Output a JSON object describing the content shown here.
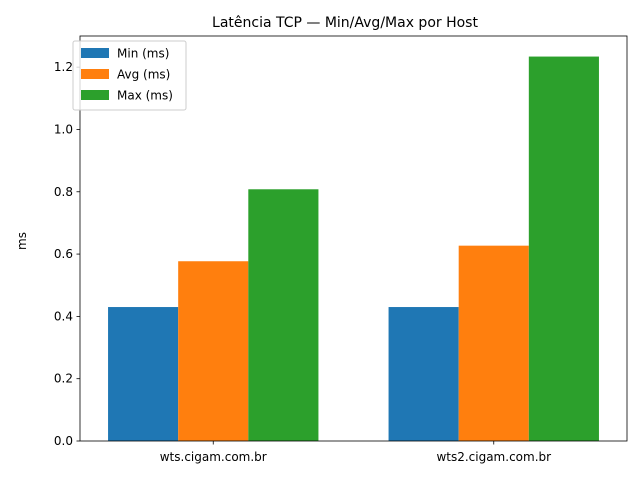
{
  "chart_data": {
    "type": "bar",
    "title": "Latência TCP — Min/Avg/Max por Host",
    "xlabel": "",
    "ylabel": "ms",
    "categories": [
      "wts.cigam.com.br",
      "wts2.cigam.com.br"
    ],
    "series": [
      {
        "name": "Min (ms)",
        "values": [
          0.43,
          0.43
        ],
        "color": "#1f77b4"
      },
      {
        "name": "Avg (ms)",
        "values": [
          0.577,
          0.627
        ],
        "color": "#ff7f0e"
      },
      {
        "name": "Max (ms)",
        "values": [
          0.808,
          1.234
        ],
        "color": "#2ca02c"
      }
    ],
    "ylim": [
      0,
      1.3
    ],
    "yticks": [
      "0.0",
      "0.2",
      "0.4",
      "0.6",
      "0.8",
      "1.0",
      "1.2"
    ],
    "legend_position": "top-left",
    "grid": false
  }
}
